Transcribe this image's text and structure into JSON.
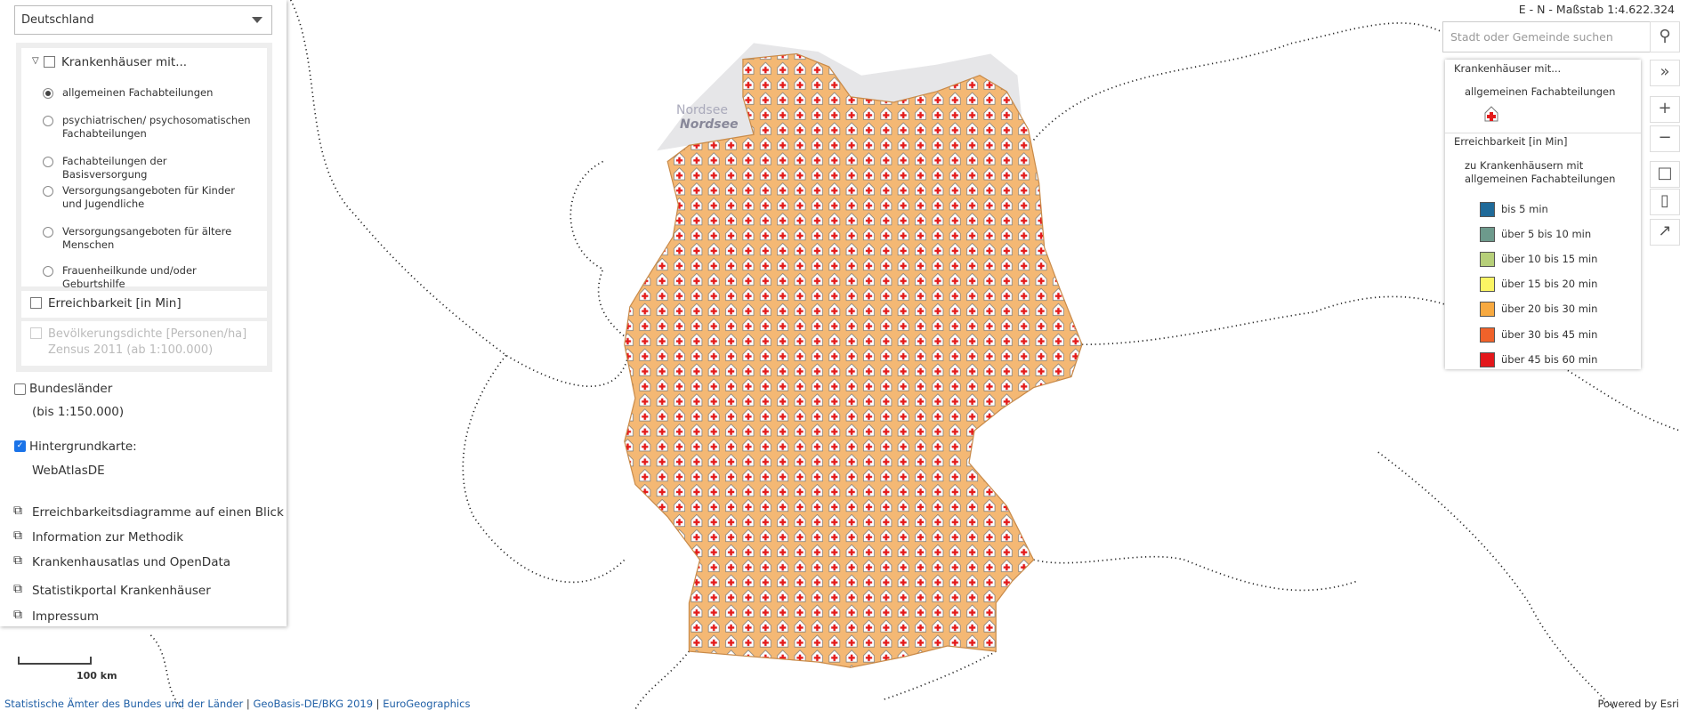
{
  "top_bar": {
    "scale_text": "E - N - Maßstab 1:4.622.324",
    "search_placeholder": "Stadt oder Gemeinde suchen"
  },
  "left_panel": {
    "region_select": "Deutschland",
    "layer_group": {
      "title": "Krankenhäuser mit...",
      "options": [
        "allgemeinen Fachabteilungen",
        "psychiatrischen/ psychosomatischen Fachabteilungen",
        "Fachabteilungen der Basisversorgung",
        "Versorgungsangeboten für Kinder und Jugendliche",
        "Versorgungsangeboten für ältere Menschen",
        "Frauenheilkunde und/oder Geburtshilfe"
      ],
      "selected": 0
    },
    "reachability_layer": "Erreichbarkeit [in Min]",
    "density_layer": "Bevölkerungsdichte [Personen/ha] Zensus 2011 (ab 1:100.000)",
    "states_layer": {
      "label": "Bundesländer",
      "note": "(bis 1:150.000)"
    },
    "background": {
      "label": "Hintergrundkarte:",
      "value": "WebAtlasDE"
    },
    "links": [
      "Erreichbarkeitsdiagramme auf einen Blick",
      "Information zur Methodik",
      "Krankenhausatlas und OpenData",
      "Statistikportal Krankenhäuser",
      "Impressum"
    ]
  },
  "legend": {
    "title": "Krankenhäuser mit...",
    "subtitle": "allgemeinen Fachabteilungen",
    "section": "Erreichbarkeit [in Min]",
    "section_subtitle": "zu Krankenhäusern mit allgemeinen Fachabteilungen",
    "items": [
      {
        "label": "bis 5 min",
        "color": "#1f6a99"
      },
      {
        "label": "über 5 bis 10 min",
        "color": "#6d9a8c"
      },
      {
        "label": "über 10 bis 15 min",
        "color": "#b6cf79"
      },
      {
        "label": "über 15 bis 20 min",
        "color": "#fbf564"
      },
      {
        "label": "über 20 bis 30 min",
        "color": "#f7a940"
      },
      {
        "label": "über 30 bis 45 min",
        "color": "#f0622a"
      },
      {
        "label": "über 45 bis 60 min",
        "color": "#e3171b"
      }
    ]
  },
  "map": {
    "sea_labels": [
      "Nordsee",
      "Nordsee"
    ],
    "scalebar": "100 km"
  },
  "footer": {
    "attribution": [
      "Statistische Ämter des Bundes und der Länder",
      "GeoBasis-DE/BKG 2019",
      "EuroGeographics"
    ],
    "powered_by": "Powered by Esri"
  }
}
